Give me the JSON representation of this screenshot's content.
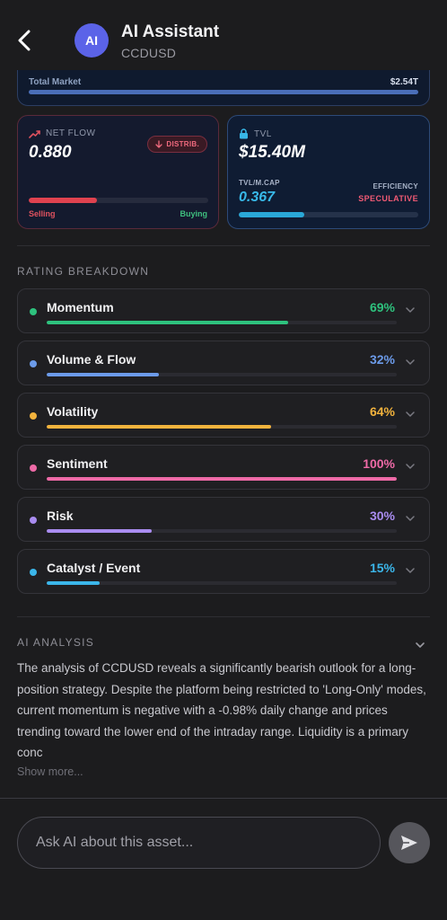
{
  "header": {
    "avatar_text": "AI",
    "title": "AI Assistant",
    "subtitle": "CCDUSD",
    "icons": {
      "back": "chevron-left-icon"
    }
  },
  "market": {
    "label": "Total Market",
    "value": "$2.54T"
  },
  "net_flow": {
    "label": "NET FLOW",
    "value": "0.880",
    "badge": "DISTRIB.",
    "selling_label": "Selling",
    "buying_label": "Buying",
    "selling_fraction": 0.38,
    "icons": {
      "head": "trend-up-icon",
      "badge": "arrow-down-icon"
    }
  },
  "tvl": {
    "label": "TVL",
    "value": "$15.40M",
    "ratio_label": "TVL/M.CAP",
    "ratio_value": "0.367",
    "efficiency_label": "EFFICIENCY",
    "efficiency_value": "SPECULATIVE",
    "ratio_fraction": 0.367,
    "icons": {
      "head": "lock-icon"
    }
  },
  "ratings": {
    "title": "RATING BREAKDOWN",
    "items": [
      {
        "name": "Momentum",
        "pct": "69%",
        "value": 0.69,
        "color": "#2ec27e"
      },
      {
        "name": "Volume & Flow",
        "pct": "32%",
        "value": 0.32,
        "color": "#6c9bea"
      },
      {
        "name": "Volatility",
        "pct": "64%",
        "value": 0.64,
        "color": "#f2b33d"
      },
      {
        "name": "Sentiment",
        "pct": "100%",
        "value": 1.0,
        "color": "#ee6aa7"
      },
      {
        "name": "Risk",
        "pct": "30%",
        "value": 0.3,
        "color": "#a98cf0"
      },
      {
        "name": "Catalyst / Event",
        "pct": "15%",
        "value": 0.15,
        "color": "#3bb6ea"
      }
    ]
  },
  "analysis": {
    "title": "AI ANALYSIS",
    "text": "The analysis of CCDUSD reveals a significantly bearish outlook for a long-position strategy. Despite the platform being restricted to 'Long-Only' modes, current momentum is negative with a -0.98% daily change and prices trending toward the lower end of the intraday range. Liquidity is a primary conc",
    "show_more": "Show more..."
  },
  "ask": {
    "placeholder": "Ask AI about this asset...",
    "icons": {
      "send": "send-icon"
    }
  }
}
